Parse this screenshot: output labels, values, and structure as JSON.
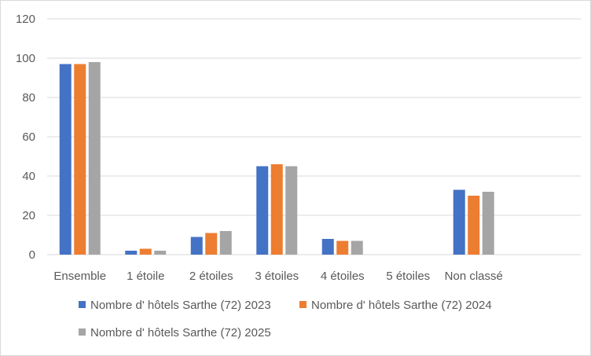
{
  "chart_data": {
    "type": "bar",
    "categories": [
      "Ensemble",
      "1 étoile",
      "2 étoiles",
      "3 étoiles",
      "4 étoiles",
      "5 étoiles",
      "Non classé"
    ],
    "series": [
      {
        "name": "Nombre d' hôtels Sarthe (72) 2023",
        "color": "#4472c4",
        "values": [
          97,
          2,
          9,
          45,
          8,
          0,
          33
        ]
      },
      {
        "name": "Nombre d' hôtels Sarthe (72) 2024",
        "color": "#ed7d31",
        "values": [
          97,
          3,
          11,
          46,
          7,
          0,
          30
        ]
      },
      {
        "name": "Nombre d' hôtels Sarthe (72) 2025",
        "color": "#a5a5a5",
        "values": [
          98,
          2,
          12,
          45,
          7,
          0,
          32
        ]
      }
    ],
    "ylim": [
      0,
      120
    ],
    "yticks": [
      "0",
      "20",
      "40",
      "60",
      "80",
      "100",
      "120"
    ],
    "grid": true,
    "legend_position": "bottom"
  }
}
